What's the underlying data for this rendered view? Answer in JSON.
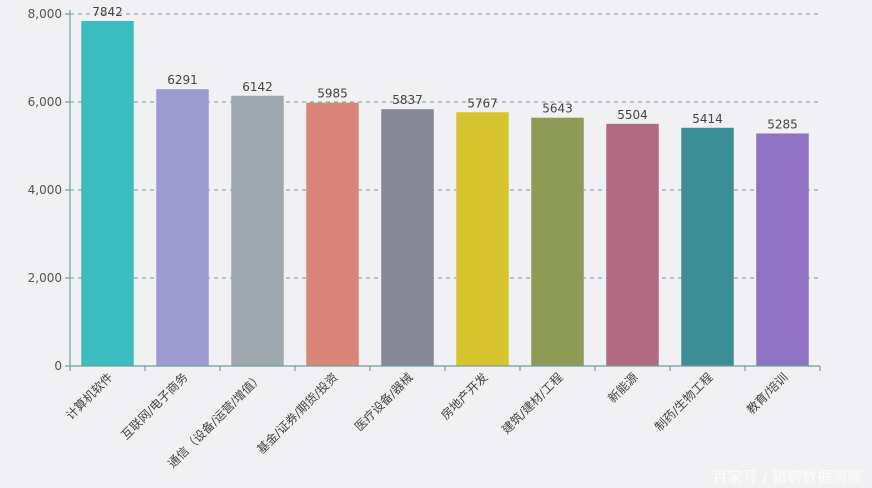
{
  "chart_data": {
    "type": "bar",
    "title": "",
    "xlabel": "",
    "ylabel": "",
    "ylim": [
      0,
      8000
    ],
    "yticks": [
      0,
      2000,
      4000,
      6000,
      8000
    ],
    "ytick_labels": [
      "0",
      "2,000",
      "4,000",
      "6,000",
      "8,000"
    ],
    "grid": true,
    "legend": "none",
    "categories": [
      "计算机软件",
      "互联网/电子商务",
      "通信（设备/运营/增值）",
      "基金/证券/期货/投资",
      "医疗设备/器械",
      "房地产开发",
      "建筑/建材/工程",
      "新能源",
      "制药/生物工程",
      "教育/培训"
    ],
    "values": [
      7842,
      6291,
      6142,
      5985,
      5837,
      5767,
      5643,
      5504,
      5414,
      5285
    ],
    "data_labels": [
      "7842",
      "6291",
      "6142",
      "5985",
      "5837",
      "5767",
      "5643",
      "5504",
      "5414",
      "5285"
    ],
    "colors": [
      "#3bbdc0",
      "#9d9bd0",
      "#9ea8ae",
      "#d9857a",
      "#878798",
      "#d6c52f",
      "#8e9b57",
      "#b06a82",
      "#3c8d95",
      "#8f72c2"
    ]
  },
  "watermark": "百家号 / 猎聘数据洞察"
}
